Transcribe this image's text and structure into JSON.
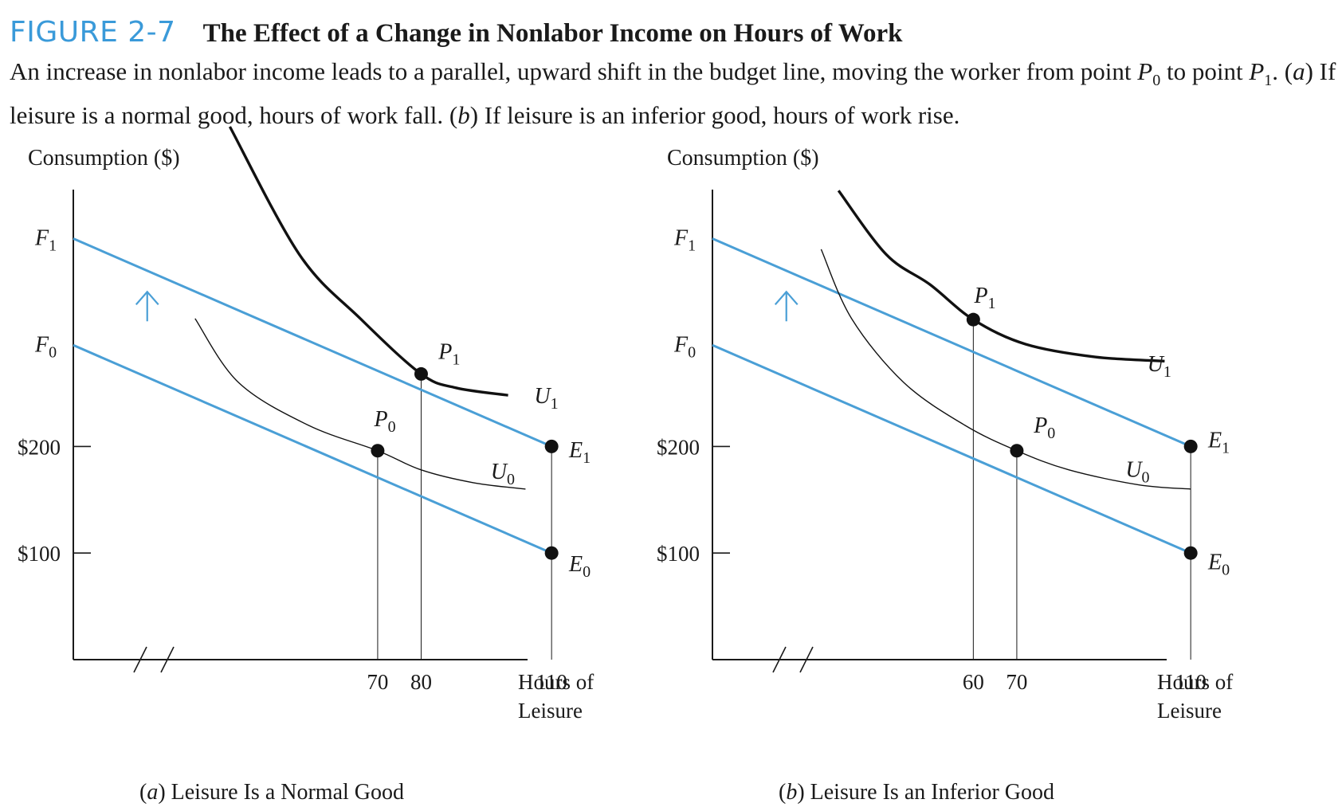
{
  "figure": {
    "label": "FIGURE 2-7",
    "title": "The Effect of a Change in Nonlabor Income on Hours of Work",
    "desc_a": "An increase in nonlabor income leads to a parallel, upward shift in the budget line, moving the worker from point ",
    "p0_letter": "P",
    "p0_sub": "0",
    "desc_b": " to point ",
    "p1_letter": "P",
    "p1_sub": "1",
    "desc_c": ". (",
    "a_letter": "a",
    "desc_d": ") If leisure is a normal good, hours of work fall. (",
    "b_letter": "b",
    "desc_e": ") If leisure is an inferior good, hours of work rise."
  },
  "colors": {
    "budget_line": "#4a9fd6",
    "arrow": "#4a9fd6",
    "curve": "#111111",
    "figure_label": "#3a9ad9"
  },
  "chart_data": [
    {
      "type": "line",
      "ylabel": "Consumption ($)",
      "xlabel_line1": "Hours of",
      "xlabel_line2": "Leisure",
      "panel_letter": "a",
      "caption_rest": ") Leisure Is a Normal Good",
      "y_ticks": [
        "$200",
        "$100"
      ],
      "y_tick_values": [
        200,
        100
      ],
      "x_ticks": [
        "70",
        "80",
        "110"
      ],
      "x_tick_values": [
        70,
        80,
        110
      ],
      "axis_break_on_x": true,
      "y_letter_labels": [
        {
          "letter": "F",
          "sub": "1",
          "y": 395
        },
        {
          "letter": "F",
          "sub": "0",
          "y": 295
        }
      ],
      "budget_lines": [
        {
          "name": "E1F1",
          "points": [
            [
              0,
              395
            ],
            [
              110,
              200
            ]
          ]
        },
        {
          "name": "E0F0",
          "points": [
            [
              0,
              295
            ],
            [
              110,
              100
            ]
          ]
        }
      ],
      "indifference_curves": [
        {
          "letter": "U",
          "sub": "1",
          "bold": true,
          "points": [
            [
              36,
              500
            ],
            [
              52,
              380
            ],
            [
              66,
              320
            ],
            [
              80,
              268
            ],
            [
              88,
              255
            ],
            [
              100,
              248
            ]
          ],
          "label_at": [
            106,
            248
          ]
        },
        {
          "letter": "U",
          "sub": "0",
          "bold": false,
          "points": [
            [
              28,
              320
            ],
            [
              38,
              260
            ],
            [
              54,
              220
            ],
            [
              70,
              196
            ],
            [
              80,
              178
            ],
            [
              92,
              166
            ],
            [
              104,
              160
            ]
          ],
          "label_at": [
            96,
            177
          ]
        }
      ],
      "points": [
        {
          "letter": "P",
          "sub": "0",
          "x": 70,
          "y": 196,
          "label_dx": -0.8,
          "label_dy": 23
        },
        {
          "letter": "P",
          "sub": "1",
          "x": 80,
          "y": 268,
          "label_dx": 4,
          "label_dy": 14
        },
        {
          "letter": "E",
          "sub": "1",
          "x": 110,
          "y": 200,
          "label_dx": 4,
          "label_dy": -10
        },
        {
          "letter": "E",
          "sub": "0",
          "x": 110,
          "y": 100,
          "label_dx": 4,
          "label_dy": -17
        }
      ],
      "drop_lines": [
        70,
        80,
        110
      ],
      "shift_arrow": {
        "x": 17,
        "y_from": 295,
        "y_to": 360
      }
    },
    {
      "type": "line",
      "ylabel": "Consumption ($)",
      "xlabel_line1": "Hours of",
      "xlabel_line2": "Leisure",
      "panel_letter": "b",
      "caption_rest": ") Leisure Is an Inferior Good",
      "y_ticks": [
        "$200",
        "$100"
      ],
      "y_tick_values": [
        200,
        100
      ],
      "x_ticks": [
        "60",
        "70",
        "110"
      ],
      "x_tick_values": [
        60,
        70,
        110
      ],
      "axis_break_on_x": true,
      "y_letter_labels": [
        {
          "letter": "F",
          "sub": "1",
          "y": 395
        },
        {
          "letter": "F",
          "sub": "0",
          "y": 295
        }
      ],
      "budget_lines": [
        {
          "name": "E1F1",
          "points": [
            [
              0,
              395
            ],
            [
              110,
              200
            ]
          ]
        },
        {
          "name": "E0F0",
          "points": [
            [
              0,
              295
            ],
            [
              110,
              100
            ]
          ]
        }
      ],
      "indifference_curves": [
        {
          "letter": "U",
          "sub": "1",
          "bold": true,
          "points": [
            [
              29,
              440
            ],
            [
              40,
              380
            ],
            [
              50,
              352
            ],
            [
              60,
              319
            ],
            [
              72,
              296
            ],
            [
              88,
              284
            ],
            [
              104,
              280
            ]
          ],
          "label_at": [
            100,
            278
          ]
        },
        {
          "letter": "U",
          "sub": "0",
          "bold": false,
          "points": [
            [
              25,
              385
            ],
            [
              32,
              320
            ],
            [
              44,
              260
            ],
            [
              58,
              220
            ],
            [
              70,
              196
            ],
            [
              82,
              178
            ],
            [
              98,
              164
            ],
            [
              110,
              160
            ]
          ],
          "label_at": [
            95,
            179
          ]
        }
      ],
      "points": [
        {
          "letter": "P",
          "sub": "1",
          "x": 60,
          "y": 319,
          "label_dx": 0.2,
          "label_dy": 16
        },
        {
          "letter": "P",
          "sub": "0",
          "x": 70,
          "y": 196,
          "label_dx": 3.9,
          "label_dy": 17
        },
        {
          "letter": "E",
          "sub": "1",
          "x": 110,
          "y": 200,
          "label_dx": 4,
          "label_dy": -1
        },
        {
          "letter": "E",
          "sub": "0",
          "x": 110,
          "y": 100,
          "label_dx": 4,
          "label_dy": -15
        }
      ],
      "drop_lines": [
        60,
        70,
        110
      ],
      "shift_arrow": {
        "x": 17,
        "y_from": 295,
        "y_to": 360
      }
    }
  ]
}
